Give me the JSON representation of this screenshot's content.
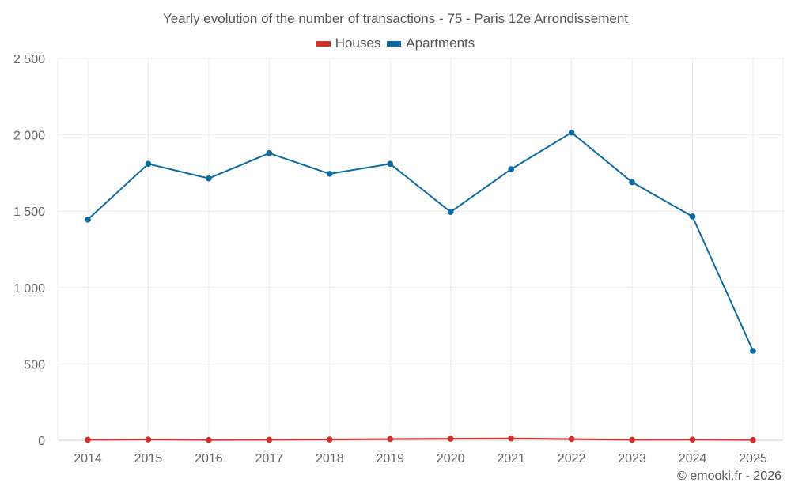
{
  "chart_data": {
    "type": "line",
    "title": "Yearly evolution of the number of transactions - 75 - Paris 12e Arrondissement",
    "categories": [
      "2014",
      "2015",
      "2016",
      "2017",
      "2018",
      "2019",
      "2020",
      "2021",
      "2022",
      "2023",
      "2024",
      "2025"
    ],
    "ylim": [
      0,
      2500
    ],
    "yticks": [
      0,
      500,
      1000,
      1500,
      2000,
      2500
    ],
    "ytick_labels": [
      "0",
      "500",
      "1 000",
      "1 500",
      "2 000",
      "2 500"
    ],
    "grid": true,
    "legend_position": "top-center",
    "series": [
      {
        "name": "Houses",
        "color": "#d32f2f",
        "values": [
          3,
          5,
          2,
          3,
          5,
          8,
          10,
          12,
          8,
          3,
          4,
          2
        ]
      },
      {
        "name": "Apartments",
        "color": "#0a6aa1",
        "values": [
          1445,
          1810,
          1715,
          1880,
          1745,
          1810,
          1495,
          1775,
          2015,
          1690,
          1465,
          585
        ]
      }
    ]
  },
  "credit": "© emooki.fr - 2026"
}
